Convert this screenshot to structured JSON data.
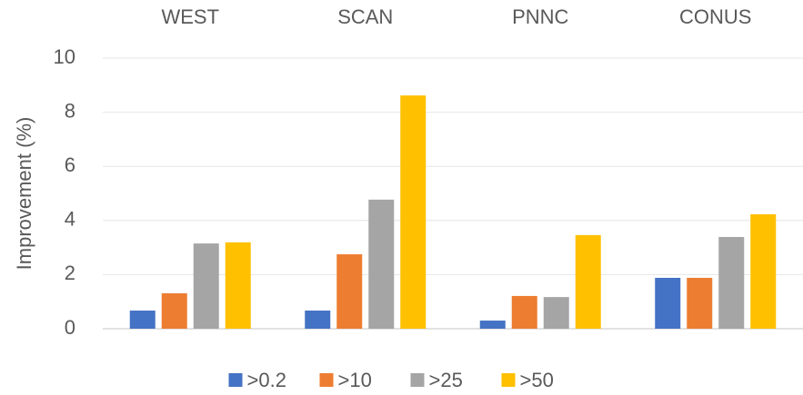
{
  "chart_data": {
    "type": "bar",
    "y_label": "Improvement (%)",
    "categories": [
      "WEST",
      "SCAN",
      "PNNC",
      "CONUS"
    ],
    "series": [
      {
        "name": ">0.2",
        "color": "#4472c4",
        "values": [
          0.67,
          0.67,
          0.3,
          1.88
        ]
      },
      {
        "name": ">10",
        "color": "#ed7d31",
        "values": [
          1.31,
          2.75,
          1.21,
          1.88
        ]
      },
      {
        "name": ">25",
        "color": "#a5a5a5",
        "values": [
          3.15,
          4.77,
          1.17,
          3.39
        ]
      },
      {
        "name": ">50",
        "color": "#ffc000",
        "values": [
          3.19,
          8.62,
          3.46,
          4.23
        ]
      }
    ],
    "ylim": [
      0,
      10
    ],
    "yticks": [
      0,
      2,
      4,
      6,
      8,
      10
    ],
    "grid": true,
    "category_position": "top",
    "legend": "bottom"
  }
}
